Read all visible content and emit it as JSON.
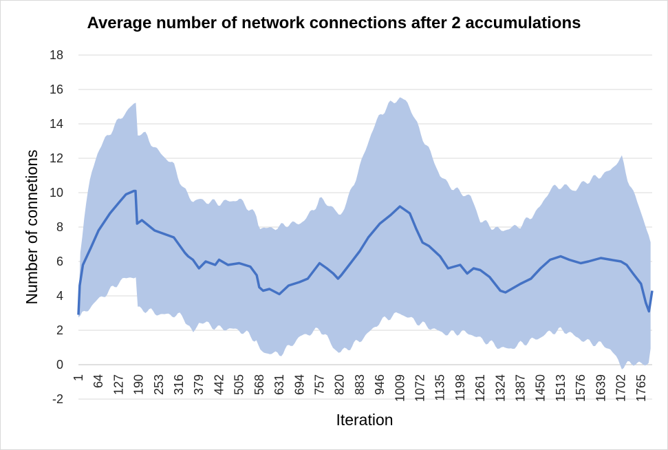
{
  "chart_data": {
    "type": "area",
    "title": "Average number of network connections after 2 accumulations",
    "xlabel": "Iteration",
    "ylabel": "Number of connetions",
    "ylim": [
      -2,
      18
    ],
    "y_ticks": [
      -2,
      0,
      2,
      4,
      6,
      8,
      10,
      12,
      14,
      16,
      18
    ],
    "x_range": [
      1,
      1800
    ],
    "x_ticks": [
      1,
      64,
      127,
      190,
      253,
      316,
      379,
      442,
      505,
      568,
      631,
      694,
      757,
      820,
      883,
      946,
      1009,
      1072,
      1135,
      1198,
      1261,
      1324,
      1387,
      1450,
      1513,
      1576,
      1639,
      1702,
      1765
    ],
    "grid": true,
    "legend": "none",
    "colors": {
      "mean_line": "#4472c4",
      "band": "#b4c7e7",
      "grid": "#d9d9d9"
    },
    "series": [
      {
        "kind": "line",
        "x": [
          1,
          5,
          15,
          40,
          64,
          100,
          127,
          150,
          175,
          180,
          185,
          200,
          240,
          300,
          335,
          345,
          360,
          379,
          400,
          430,
          442,
          470,
          505,
          540,
          560,
          568,
          580,
          600,
          631,
          660,
          694,
          720,
          757,
          780,
          800,
          815,
          825,
          850,
          883,
          910,
          946,
          980,
          1009,
          1040,
          1060,
          1080,
          1100,
          1135,
          1160,
          1198,
          1220,
          1240,
          1261,
          1290,
          1324,
          1340,
          1387,
          1420,
          1450,
          1480,
          1513,
          1540,
          1576,
          1600,
          1639,
          1670,
          1702,
          1720,
          1740,
          1765,
          1780,
          1790,
          1800
        ],
        "y": [
          2.9,
          4.6,
          5.8,
          6.8,
          7.8,
          8.8,
          9.4,
          9.9,
          10.1,
          10.1,
          8.2,
          8.4,
          7.8,
          7.4,
          6.5,
          6.3,
          6.1,
          5.6,
          6.0,
          5.8,
          6.1,
          5.8,
          5.9,
          5.7,
          5.2,
          4.5,
          4.3,
          4.4,
          4.1,
          4.6,
          4.8,
          5.0,
          5.9,
          5.6,
          5.3,
          5.0,
          5.2,
          5.8,
          6.6,
          7.4,
          8.2,
          8.7,
          9.2,
          8.8,
          7.9,
          7.1,
          6.9,
          6.3,
          5.6,
          5.8,
          5.3,
          5.6,
          5.5,
          5.1,
          4.3,
          4.2,
          4.7,
          5.0,
          5.6,
          6.1,
          6.3,
          6.1,
          5.9,
          6.0,
          6.2,
          6.1,
          6.0,
          5.8,
          5.3,
          4.7,
          3.6,
          3.1,
          4.3
        ]
      },
      {
        "kind": "band",
        "x": [
          1,
          5,
          20,
          40,
          64,
          100,
          127,
          160,
          175,
          181,
          185,
          195,
          215,
          240,
          270,
          300,
          330,
          345,
          360,
          380,
          400,
          442,
          470,
          505,
          530,
          560,
          568,
          590,
          631,
          660,
          694,
          720,
          740,
          757,
          780,
          800,
          820,
          850,
          883,
          920,
          946,
          980,
          1009,
          1030,
          1050,
          1072,
          1100,
          1135,
          1160,
          1198,
          1230,
          1261,
          1300,
          1324,
          1350,
          1387,
          1420,
          1450,
          1480,
          1513,
          1540,
          1560,
          1576,
          1600,
          1639,
          1670,
          1690,
          1705,
          1720,
          1740,
          1760,
          1770,
          1780,
          1790,
          1800
        ],
        "upper": [
          2.9,
          6.2,
          8.8,
          11.0,
          12.5,
          13.5,
          14.2,
          14.9,
          15.1,
          15.2,
          13.4,
          13.5,
          13.3,
          12.6,
          12.1,
          11.6,
          10.2,
          9.9,
          9.5,
          9.6,
          9.5,
          9.4,
          9.5,
          9.6,
          9.2,
          8.6,
          8.0,
          7.9,
          8.0,
          8.2,
          8.2,
          8.6,
          9.1,
          9.6,
          9.4,
          9.1,
          8.6,
          9.8,
          11.5,
          13.5,
          14.5,
          15.2,
          15.5,
          15.3,
          14.6,
          13.5,
          12.5,
          11.0,
          10.5,
          10.0,
          9.8,
          8.4,
          8.0,
          7.8,
          7.9,
          8.1,
          8.6,
          9.2,
          10.2,
          10.4,
          10.3,
          10.1,
          10.5,
          10.7,
          11.0,
          11.3,
          11.8,
          12.0,
          11.0,
          10.0,
          9.2,
          8.6,
          8.0,
          7.4,
          6.6
        ],
        "lower": [
          2.9,
          2.8,
          3.0,
          3.4,
          3.8,
          4.3,
          4.8,
          5.1,
          5.1,
          5.1,
          3.3,
          3.2,
          3.2,
          3.0,
          2.9,
          2.9,
          2.8,
          2.3,
          1.8,
          2.5,
          2.4,
          2.1,
          2.1,
          2.0,
          1.8,
          1.4,
          0.8,
          0.7,
          0.6,
          1.0,
          1.6,
          1.8,
          1.9,
          2.1,
          1.6,
          1.0,
          0.7,
          1.0,
          1.4,
          2.0,
          2.5,
          2.8,
          3.0,
          2.8,
          2.6,
          2.4,
          2.2,
          1.9,
          1.8,
          1.9,
          1.8,
          1.5,
          1.2,
          1.0,
          0.9,
          1.2,
          1.4,
          1.6,
          1.9,
          2.0,
          1.9,
          1.6,
          1.5,
          1.3,
          1.2,
          0.9,
          0.3,
          -0.1,
          0.0,
          0.1,
          0.1,
          0.0,
          -0.1,
          0.2,
          1.9
        ]
      }
    ]
  }
}
